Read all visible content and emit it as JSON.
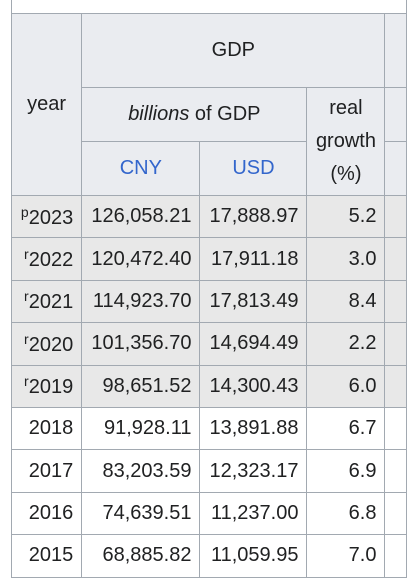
{
  "table": {
    "top_partial_text": "(… ..)",
    "year_header": "year",
    "gdp_header": "GDP",
    "billions_em": "billions",
    "billions_rest": " of GDP",
    "growth_line1": "real",
    "growth_line2": "growth",
    "growth_line3": "(%)",
    "cny_label": "CNY",
    "usd_label": "USD",
    "rows": [
      {
        "mark": "p",
        "year": "2023",
        "cny": "126,058.21",
        "usd": "17,888.97",
        "growth": "5.2"
      },
      {
        "mark": "r",
        "year": "2022",
        "cny": "120,472.40",
        "usd": "17,911.18",
        "growth": "3.0"
      },
      {
        "mark": "r",
        "year": "2021",
        "cny": "114,923.70",
        "usd": "17,813.49",
        "growth": "8.4"
      },
      {
        "mark": "r",
        "year": "2020",
        "cny": "101,356.70",
        "usd": "14,694.49",
        "growth": "2.2"
      },
      {
        "mark": "r",
        "year": "2019",
        "cny": "98,651.52",
        "usd": "14,300.43",
        "growth": "6.0"
      },
      {
        "mark": "",
        "year": "2018",
        "cny": "91,928.11",
        "usd": "13,891.88",
        "growth": "6.7"
      },
      {
        "mark": "",
        "year": "2017",
        "cny": "83,203.59",
        "usd": "12,323.17",
        "growth": "6.9"
      },
      {
        "mark": "",
        "year": "2016",
        "cny": "74,639.51",
        "usd": "11,237.00",
        "growth": "6.8"
      },
      {
        "mark": "",
        "year": "2015",
        "cny": "68,885.82",
        "usd": "11,059.95",
        "growth": "7.0"
      }
    ]
  },
  "colors": {
    "link": "#3366cc",
    "border": "#a2a9b1",
    "preliminary_row_bg": "#e8e8e8"
  }
}
